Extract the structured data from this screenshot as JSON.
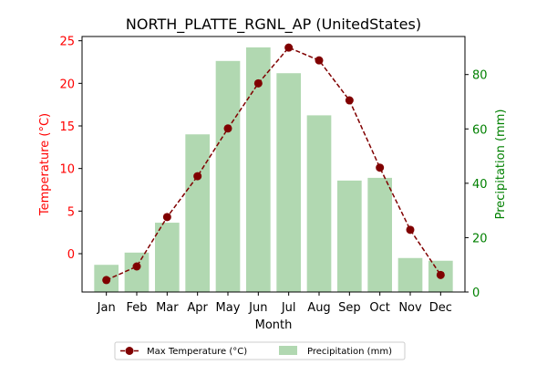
{
  "chart_data": {
    "type": "bar",
    "title": "NORTH_PLATTE_RGNL_AP (UnitedStates)",
    "xlabel": "Month",
    "ylabel_left": "Temperature (°C)",
    "ylabel_right": "Precipitation (mm)",
    "categories": [
      "Jan",
      "Feb",
      "Mar",
      "Apr",
      "May",
      "Jun",
      "Jul",
      "Aug",
      "Sep",
      "Oct",
      "Nov",
      "Dec"
    ],
    "ylim_left": [
      -4.5,
      25.5
    ],
    "yticks_left": [
      0,
      5,
      10,
      15,
      20,
      25
    ],
    "ylim_right": [
      0,
      94
    ],
    "yticks_right": [
      0,
      20,
      40,
      60,
      80
    ],
    "grid": false,
    "legend_position": "bottom-center, below plot",
    "series": [
      {
        "name": "Max Temperature (°C)",
        "kind": "line",
        "axis": "left",
        "style": "dashed, circle markers",
        "color": "#800000",
        "values": [
          -3.1,
          -1.5,
          4.3,
          9.1,
          14.7,
          20.0,
          24.2,
          22.7,
          18.0,
          10.1,
          2.8,
          -2.5
        ]
      },
      {
        "name": "Precipitation (mm)",
        "kind": "bar",
        "axis": "right",
        "color": "#b1d8b1",
        "values": [
          10,
          14.5,
          25.5,
          58,
          85,
          90,
          80.5,
          65,
          41,
          42,
          12.5,
          11.5
        ]
      }
    ],
    "colors": {
      "left_axis": "#ff0000",
      "right_axis": "#008000",
      "line": "#800000",
      "bars": "#b1d8b1"
    }
  }
}
